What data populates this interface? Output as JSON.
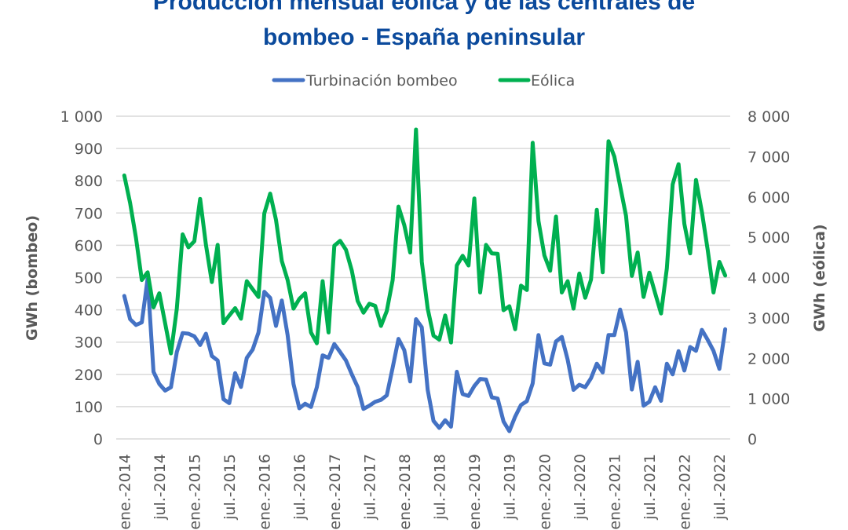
{
  "chart_data": {
    "type": "line",
    "title_lines": [
      "Producción mensual eólica y de las centrales de",
      "bombeo - España peninsular"
    ],
    "xlabel": "",
    "ylabel_left": "GWh (bombeo)",
    "ylabel_right": "GWh (eólica)",
    "ylim_left": [
      0,
      1000
    ],
    "ylim_right": [
      0,
      8000
    ],
    "yticks_left": [
      "0",
      "100",
      "200",
      "300",
      "400",
      "500",
      "600",
      "700",
      "800",
      "900",
      "1 000"
    ],
    "yticks_right": [
      "0",
      "1 000",
      "2 000",
      "3 000",
      "4 000",
      "5 000",
      "6 000",
      "7 000",
      "8 000"
    ],
    "grid": true,
    "legend_position": "top",
    "x_tick_every": 6,
    "categories": [
      "ene.-2014",
      "feb.-2014",
      "mar.-2014",
      "abr.-2014",
      "may.-2014",
      "jun.-2014",
      "jul.-2014",
      "ago.-2014",
      "sep.-2014",
      "oct.-2014",
      "nov.-2014",
      "dic.-2014",
      "ene.-2015",
      "feb.-2015",
      "mar.-2015",
      "abr.-2015",
      "may.-2015",
      "jun.-2015",
      "jul.-2015",
      "ago.-2015",
      "sep.-2015",
      "oct.-2015",
      "nov.-2015",
      "dic.-2015",
      "ene.-2016",
      "feb.-2016",
      "mar.-2016",
      "abr.-2016",
      "may.-2016",
      "jun.-2016",
      "jul.-2016",
      "ago.-2016",
      "sep.-2016",
      "oct.-2016",
      "nov.-2016",
      "dic.-2016",
      "ene.-2017",
      "feb.-2017",
      "mar.-2017",
      "abr.-2017",
      "may.-2017",
      "jun.-2017",
      "jul.-2017",
      "ago.-2017",
      "sep.-2017",
      "oct.-2017",
      "nov.-2017",
      "dic.-2017",
      "ene.-2018",
      "feb.-2018",
      "mar.-2018",
      "abr.-2018",
      "may.-2018",
      "jun.-2018",
      "jul.-2018",
      "ago.-2018",
      "sep.-2018",
      "oct.-2018",
      "nov.-2018",
      "dic.-2018",
      "ene.-2019",
      "feb.-2019",
      "mar.-2019",
      "abr.-2019",
      "may.-2019",
      "jun.-2019",
      "jul.-2019",
      "ago.-2019",
      "sep.-2019",
      "oct.-2019",
      "nov.-2019",
      "dic.-2019",
      "ene.-2020",
      "feb.-2020",
      "mar.-2020",
      "abr.-2020",
      "may.-2020",
      "jun.-2020",
      "jul.-2020",
      "ago.-2020",
      "sep.-2020",
      "oct.-2020",
      "nov.-2020",
      "dic.-2020",
      "ene.-2021",
      "feb.-2021",
      "mar.-2021",
      "abr.-2021",
      "may.-2021",
      "jun.-2021",
      "jul.-2021",
      "ago.-2021",
      "sep.-2021",
      "oct.-2021",
      "nov.-2021",
      "dic.-2021",
      "ene.-2022",
      "feb.-2022",
      "mar.-2022",
      "abr.-2022",
      "may.-2022",
      "jun.-2022",
      "jul.-2022",
      "ago.-2022"
    ],
    "series": [
      {
        "name": "Turbinación bombeo",
        "axis": "left",
        "color": "#4472C4",
        "values": [
          443,
          371,
          353,
          361,
          496,
          208,
          170,
          150,
          160,
          269,
          328,
          326,
          318,
          291,
          326,
          257,
          243,
          123,
          111,
          204,
          161,
          251,
          277,
          330,
          456,
          437,
          350,
          429,
          322,
          170,
          95,
          109,
          99,
          160,
          259,
          251,
          294,
          269,
          243,
          200,
          161,
          93,
          103,
          115,
          121,
          135,
          221,
          310,
          275,
          178,
          371,
          346,
          152,
          56,
          34,
          58,
          38,
          208,
          139,
          133,
          164,
          186,
          184,
          129,
          125,
          54,
          24,
          69,
          105,
          117,
          172,
          322,
          234,
          230,
          302,
          316,
          245,
          152,
          168,
          160,
          188,
          233,
          206,
          322,
          322,
          401,
          330,
          153,
          239,
          103,
          115,
          160,
          118,
          233,
          200,
          272,
          212,
          285,
          273,
          338,
          307,
          273,
          217,
          340
        ]
      },
      {
        "name": "Eólica",
        "axis": "right",
        "color": "#00B050",
        "values": [
          6530,
          5850,
          4980,
          3940,
          4130,
          3260,
          3610,
          2870,
          2120,
          3230,
          5070,
          4750,
          4900,
          5950,
          4810,
          3890,
          4810,
          2870,
          3060,
          3240,
          2980,
          3910,
          3710,
          3520,
          5590,
          6080,
          5430,
          4410,
          3940,
          3230,
          3470,
          3610,
          2640,
          2370,
          3910,
          2640,
          4790,
          4910,
          4690,
          4170,
          3420,
          3130,
          3350,
          3300,
          2800,
          3170,
          3940,
          5760,
          5300,
          4620,
          7670,
          4390,
          3230,
          2560,
          2460,
          3060,
          2390,
          4300,
          4540,
          4300,
          5960,
          3630,
          4810,
          4600,
          4590,
          3190,
          3290,
          2720,
          3800,
          3690,
          7340,
          5400,
          4550,
          4170,
          5510,
          3630,
          3910,
          3230,
          4100,
          3500,
          3950,
          5680,
          4130,
          7380,
          7000,
          6270,
          5530,
          4040,
          4620,
          3520,
          4120,
          3610,
          3110,
          4230,
          6310,
          6810,
          5330,
          4600,
          6420,
          5630,
          4690,
          3630,
          4390,
          4050
        ]
      }
    ]
  }
}
